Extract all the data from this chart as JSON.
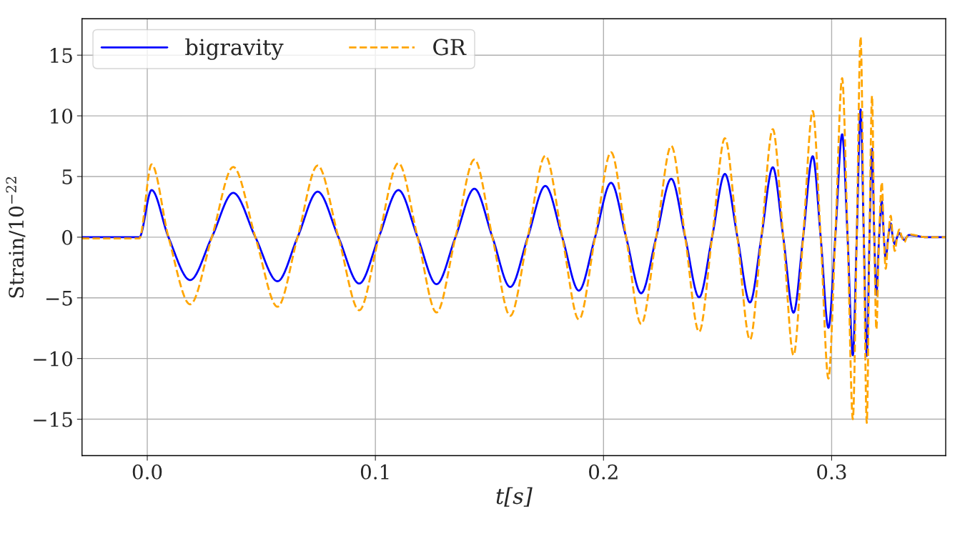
{
  "chart_data": {
    "type": "line",
    "xlabel": "t[s]",
    "ylabel": "Strain/10$^{−22}$",
    "x": [
      -0.0286,
      -0.0035,
      0.0019,
      0.0093,
      0.0188,
      0.0283,
      0.0377,
      0.0474,
      0.0571,
      0.0659,
      0.0747,
      0.0838,
      0.0929,
      0.1015,
      0.1101,
      0.1185,
      0.1268,
      0.1351,
      0.1434,
      0.1513,
      0.1591,
      0.1668,
      0.1745,
      0.1819,
      0.1892,
      0.1963,
      0.2033,
      0.2099,
      0.2165,
      0.2231,
      0.2297,
      0.2358,
      0.2419,
      0.2476,
      0.2532,
      0.2587,
      0.2642,
      0.2692,
      0.2742,
      0.2788,
      0.2833,
      0.2875,
      0.2917,
      0.2952,
      0.2986,
      0.3016,
      0.3046,
      0.307,
      0.3093,
      0.311,
      0.3127,
      0.3141,
      0.3154,
      0.3166,
      0.3177,
      0.3187,
      0.3196,
      0.3208,
      0.322,
      0.3229,
      0.3237,
      0.3248,
      0.3259,
      0.3268,
      0.3277,
      0.3287,
      0.3297,
      0.3308,
      0.3319,
      0.3329,
      0.3339,
      0.3414,
      0.35
    ],
    "series": [
      {
        "name": "bigravity",
        "color": "#0000ff",
        "line_style": "solid",
        "values": [
          0,
          0,
          3.88,
          0,
          -3.53,
          0,
          3.65,
          0,
          -3.63,
          0,
          3.75,
          0,
          -3.82,
          0,
          3.88,
          0,
          -3.87,
          0,
          3.99,
          0,
          -4.1,
          0,
          4.22,
          0,
          -4.4,
          0,
          4.48,
          0,
          -4.62,
          0,
          4.81,
          0,
          -4.95,
          0,
          5.21,
          0,
          -5.38,
          0,
          5.76,
          0,
          -6.22,
          0,
          6.67,
          0,
          -7.47,
          0,
          8.48,
          0,
          -9.73,
          0,
          10.52,
          0,
          -9.77,
          0,
          7.29,
          0,
          -4.75,
          0,
          2.94,
          0,
          -1.81,
          0,
          1.13,
          0,
          -0.57,
          0,
          0.34,
          0,
          -0.23,
          0,
          0.18,
          0,
          0
        ]
      },
      {
        "name": "GR",
        "color": "#ffa500",
        "line_style": "dashed",
        "values": [
          -0.1,
          -0.1,
          6.0,
          0,
          -5.53,
          0,
          5.78,
          0,
          -5.73,
          0,
          5.9,
          0,
          -6.02,
          0,
          6.1,
          0,
          -6.2,
          0,
          6.4,
          0,
          -6.48,
          0,
          6.7,
          0,
          -6.78,
          0,
          7.0,
          0,
          -7.15,
          0,
          7.52,
          0,
          -7.8,
          0,
          8.15,
          0,
          -8.45,
          0,
          8.9,
          0,
          -9.73,
          0,
          10.4,
          0,
          -11.65,
          0,
          13.1,
          0,
          -15.0,
          0,
          16.5,
          0,
          -15.3,
          0,
          11.65,
          0,
          -7.6,
          0,
          4.52,
          0,
          -2.6,
          0,
          1.76,
          0,
          -1.13,
          0,
          0.63,
          0,
          -0.41,
          0,
          0.23,
          0,
          0
        ]
      }
    ],
    "xlim": [
      -0.0286,
      0.35
    ],
    "ylim": [
      -18,
      18
    ],
    "xticks": [
      {
        "value": 0.0,
        "label": "0.0"
      },
      {
        "value": 0.1,
        "label": "0.1"
      },
      {
        "value": 0.2,
        "label": "0.2"
      },
      {
        "value": 0.3,
        "label": "0.3"
      }
    ],
    "yticks": [
      -15,
      -10,
      -5,
      0,
      5,
      10,
      15
    ],
    "grid": true,
    "legend": "top left"
  }
}
